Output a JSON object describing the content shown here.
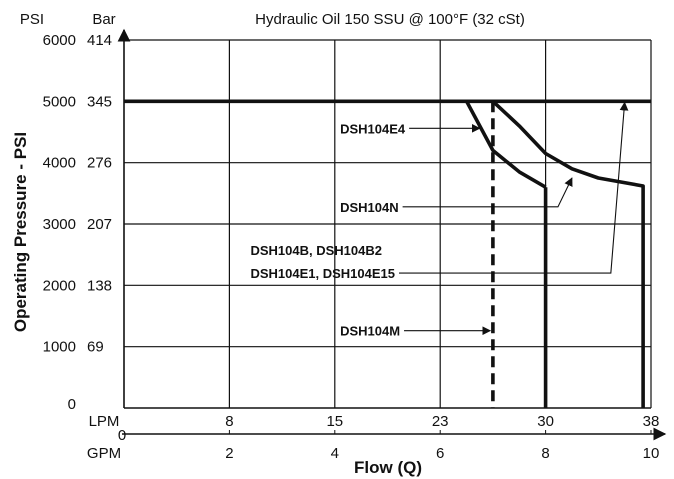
{
  "chart_data": {
    "type": "line",
    "title": "Hydraulic Oil 150 SSU @ 100°F (32 cSt)",
    "ylabel": "Operating Pressure - PSI",
    "xlabel": "Flow (Q)",
    "y_units": {
      "psi": "PSI",
      "bar": "Bar"
    },
    "x_units": {
      "lpm": "LPM",
      "gpm": "GPM"
    },
    "ylim": [
      0,
      6000
    ],
    "xlim_gpm": [
      0,
      10
    ],
    "y_ticks_psi": [
      0,
      1000,
      2000,
      3000,
      4000,
      5000,
      6000
    ],
    "y_tick_labels_psi": [
      "0",
      "1000",
      "2000",
      "3000",
      "4000",
      "5000",
      "6000"
    ],
    "y_tick_labels_bar": [
      "",
      "69",
      "138",
      "207",
      "276",
      "345",
      "414"
    ],
    "x_ticks_gpm": [
      0,
      2,
      4,
      6,
      8,
      10
    ],
    "x_tick_labels_gpm": [
      "0",
      "2",
      "4",
      "6",
      "8",
      "10"
    ],
    "x_ticks_lpm": [
      2,
      4,
      6,
      8,
      10
    ],
    "x_tick_labels_lpm": [
      "8",
      "15",
      "23",
      "30",
      "38"
    ],
    "grid": true,
    "series": [
      {
        "key": "base",
        "style": "solid",
        "x": [
          0,
          10
        ],
        "y": [
          5000,
          5000
        ]
      },
      {
        "key": "e4",
        "style": "solid",
        "x": [
          6.5,
          7.0,
          7.5,
          8.0
        ],
        "y": [
          5000,
          4200,
          3850,
          3600
        ]
      },
      {
        "key": "n",
        "style": "solid",
        "x": [
          7.0,
          7.5,
          8.0,
          8.5,
          9.0,
          9.85,
          9.85
        ],
        "y": [
          5000,
          4600,
          4150,
          3900,
          3750,
          3620,
          0
        ]
      },
      {
        "key": "vert",
        "style": "solid",
        "x": [
          8.0,
          8.0
        ],
        "y": [
          3600,
          0
        ]
      },
      {
        "key": "m",
        "style": "dashed",
        "x": [
          7.0,
          7.0
        ],
        "y": [
          5000,
          0
        ]
      }
    ],
    "annotations": [
      {
        "key": "e4",
        "text": "DSH104E4",
        "x": 4.1,
        "y": 4560,
        "arrow_to": [
          6.75,
          4560
        ]
      },
      {
        "key": "n",
        "text": "DSH104N",
        "x": 4.1,
        "y": 3280,
        "arrow_to": [
          8.5,
          3750
        ]
      },
      {
        "key": "b",
        "text": "DSH104B, DSH104B2",
        "x": 2.4,
        "y": 2580
      },
      {
        "key": "e1",
        "text": "DSH104E1, DSH104E15",
        "x": 2.4,
        "y": 2200,
        "arrow_to": [
          9.5,
          4980
        ]
      },
      {
        "key": "m",
        "text": "DSH104M",
        "x": 4.1,
        "y": 1260,
        "arrow_to": [
          6.95,
          1260
        ]
      }
    ]
  }
}
